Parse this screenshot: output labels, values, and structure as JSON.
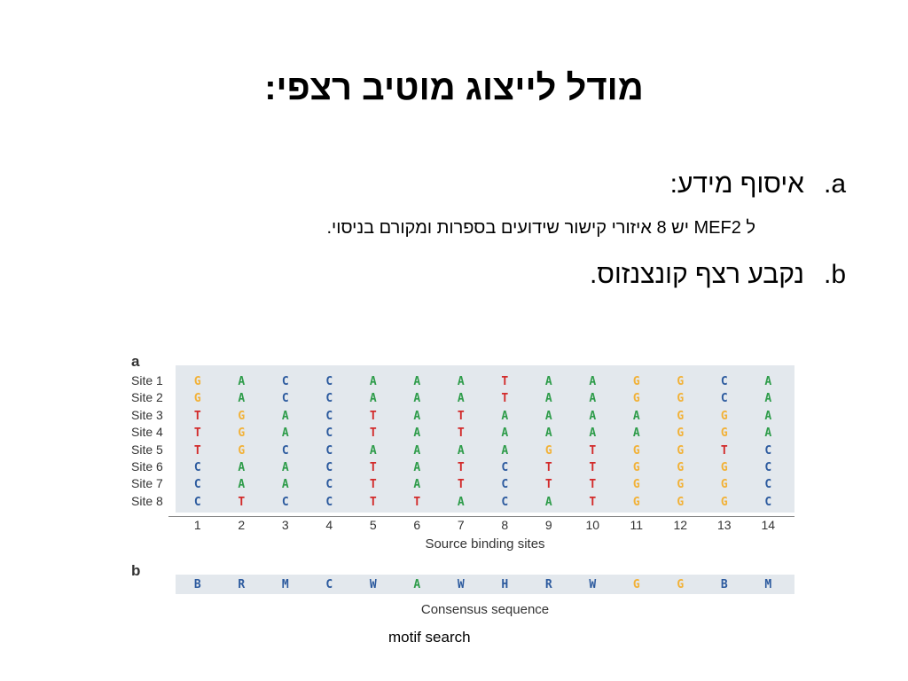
{
  "slide": {
    "title": "מודל לייצוג מוטיב רצפי:",
    "items": [
      {
        "marker": "a.",
        "text": "איסוף מידע:"
      },
      {
        "marker": "b.",
        "text": "נקבע רצף קונצנזוס."
      }
    ],
    "subitem": "ל MEF2 יש 8 איזורי קישור שידועים בספרות ומקורם בניסוי."
  },
  "figure": {
    "panel_a_label": "a",
    "panel_b_label": "b",
    "sites": [
      {
        "label": "Site 1",
        "seq": [
          "G",
          "A",
          "C",
          "C",
          "A",
          "A",
          "A",
          "T",
          "A",
          "A",
          "G",
          "G",
          "C",
          "A"
        ]
      },
      {
        "label": "Site 2",
        "seq": [
          "G",
          "A",
          "C",
          "C",
          "A",
          "A",
          "A",
          "T",
          "A",
          "A",
          "G",
          "G",
          "C",
          "A"
        ]
      },
      {
        "label": "Site 3",
        "seq": [
          "T",
          "G",
          "A",
          "C",
          "T",
          "A",
          "T",
          "A",
          "A",
          "A",
          "A",
          "G",
          "G",
          "A"
        ]
      },
      {
        "label": "Site 4",
        "seq": [
          "T",
          "G",
          "A",
          "C",
          "T",
          "A",
          "T",
          "A",
          "A",
          "A",
          "A",
          "G",
          "G",
          "A"
        ]
      },
      {
        "label": "Site 5",
        "seq": [
          "T",
          "G",
          "C",
          "C",
          "A",
          "A",
          "A",
          "A",
          "G",
          "T",
          "G",
          "G",
          "T",
          "C"
        ]
      },
      {
        "label": "Site 6",
        "seq": [
          "C",
          "A",
          "A",
          "C",
          "T",
          "A",
          "T",
          "C",
          "T",
          "T",
          "G",
          "G",
          "G",
          "C"
        ]
      },
      {
        "label": "Site 7",
        "seq": [
          "C",
          "A",
          "A",
          "C",
          "T",
          "A",
          "T",
          "C",
          "T",
          "T",
          "G",
          "G",
          "G",
          "C"
        ]
      },
      {
        "label": "Site 8",
        "seq": [
          "C",
          "T",
          "C",
          "C",
          "T",
          "T",
          "A",
          "C",
          "A",
          "T",
          "G",
          "G",
          "G",
          "C"
        ]
      }
    ],
    "positions": [
      "1",
      "2",
      "3",
      "4",
      "5",
      "6",
      "7",
      "8",
      "9",
      "10",
      "11",
      "12",
      "13",
      "14"
    ],
    "axis_title": "Source binding sites",
    "consensus": [
      "B",
      "R",
      "M",
      "C",
      "W",
      "A",
      "W",
      "H",
      "R",
      "W",
      "G",
      "G",
      "B",
      "M"
    ],
    "consensus_title": "Consensus sequence",
    "caption": "motif search",
    "colors": {
      "A": "#2e9c4a",
      "C": "#2c5a9e",
      "G": "#f2b136",
      "T": "#d22a2a",
      "ambiguous": "#2c5a9e"
    }
  }
}
